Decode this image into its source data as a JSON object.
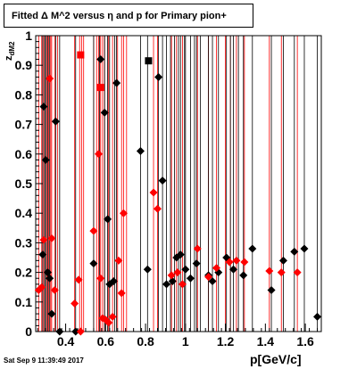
{
  "title": "Fitted Δ M^2 versus η and p for Primary pion+",
  "timestamp": "Sat Sep  9 11:39:49 2017",
  "chart_data": {
    "type": "scatter",
    "title": "Fitted Δ M^2 versus η and p for Primary pion+",
    "xlabel": "p[GeV/c]",
    "ylabel": "z_dM2",
    "xlim": [
      0.25,
      1.68
    ],
    "ylim": [
      0,
      1
    ],
    "x_ticks": [
      0.4,
      0.6,
      0.8,
      1.0,
      1.2,
      1.4,
      1.6
    ],
    "x_tick_labels": [
      "0.4",
      "0.6",
      "0.8",
      "1",
      "1.2",
      "1.4",
      "1.6"
    ],
    "y_ticks": [
      0,
      0.1,
      0.2,
      0.3,
      0.4,
      0.5,
      0.6,
      0.7,
      0.8,
      0.9,
      1
    ],
    "y_tick_labels": [
      "0",
      "0.1",
      "0.2",
      "0.3",
      "0.4",
      "0.5",
      "0.6",
      "0.7",
      "0.8",
      "0.9",
      "1"
    ],
    "colors": {
      "black": "#000000",
      "red": "#ff0000"
    },
    "series": [
      {
        "color": "#000000",
        "points": [
          {
            "x": 0.285,
            "y": 0.26
          },
          {
            "x": 0.29,
            "y": 0.76
          },
          {
            "x": 0.3,
            "y": 0.58
          },
          {
            "x": 0.31,
            "y": 0.2
          },
          {
            "x": 0.32,
            "y": 0.18
          },
          {
            "x": 0.33,
            "y": 0.06
          },
          {
            "x": 0.35,
            "y": 0.71
          },
          {
            "x": 0.37,
            "y": 0.0
          },
          {
            "x": 0.45,
            "y": 0.0
          },
          {
            "x": 0.54,
            "y": 0.23
          },
          {
            "x": 0.575,
            "y": 0.92
          },
          {
            "x": 0.595,
            "y": 0.74
          },
          {
            "x": 0.61,
            "y": 0.38
          },
          {
            "x": 0.62,
            "y": 0.16
          },
          {
            "x": 0.64,
            "y": 0.17
          },
          {
            "x": 0.655,
            "y": 0.84
          },
          {
            "x": 0.775,
            "y": 0.61
          },
          {
            "x": 0.81,
            "y": 0.21
          },
          {
            "x": 0.865,
            "y": 0.86
          },
          {
            "x": 0.885,
            "y": 0.51
          },
          {
            "x": 0.905,
            "y": 0.16
          },
          {
            "x": 0.935,
            "y": 0.17
          },
          {
            "x": 0.955,
            "y": 0.25
          },
          {
            "x": 0.975,
            "y": 0.26
          },
          {
            "x": 1.0,
            "y": 0.21
          },
          {
            "x": 1.025,
            "y": 0.18
          },
          {
            "x": 1.055,
            "y": 0.23
          },
          {
            "x": 1.115,
            "y": 0.19
          },
          {
            "x": 1.135,
            "y": 0.17
          },
          {
            "x": 1.165,
            "y": 0.2
          },
          {
            "x": 1.205,
            "y": 0.25
          },
          {
            "x": 1.24,
            "y": 0.21
          },
          {
            "x": 1.29,
            "y": 0.19
          },
          {
            "x": 1.335,
            "y": 0.28
          },
          {
            "x": 1.43,
            "y": 0.14
          },
          {
            "x": 1.49,
            "y": 0.24
          },
          {
            "x": 1.545,
            "y": 0.27
          },
          {
            "x": 1.595,
            "y": 0.28
          },
          {
            "x": 1.66,
            "y": 0.05
          }
        ],
        "square": {
          "x": 0.815,
          "y": 0.915
        }
      },
      {
        "color": "#ff0000",
        "points": [
          {
            "x": 0.265,
            "y": 0.14
          },
          {
            "x": 0.28,
            "y": 0.15
          },
          {
            "x": 0.29,
            "y": 0.31
          },
          {
            "x": 0.32,
            "y": 0.855
          },
          {
            "x": 0.33,
            "y": 0.315
          },
          {
            "x": 0.345,
            "y": 0.14
          },
          {
            "x": 0.445,
            "y": 0.095
          },
          {
            "x": 0.465,
            "y": 0.175
          },
          {
            "x": 0.475,
            "y": 0.0
          },
          {
            "x": 0.54,
            "y": 0.34
          },
          {
            "x": 0.565,
            "y": 0.6
          },
          {
            "x": 0.575,
            "y": 0.18
          },
          {
            "x": 0.585,
            "y": 0.045
          },
          {
            "x": 0.6,
            "y": 0.04
          },
          {
            "x": 0.615,
            "y": 0.03
          },
          {
            "x": 0.635,
            "y": 0.05
          },
          {
            "x": 0.665,
            "y": 0.24
          },
          {
            "x": 0.68,
            "y": 0.13
          },
          {
            "x": 0.69,
            "y": 0.4
          },
          {
            "x": 0.84,
            "y": 0.47
          },
          {
            "x": 0.86,
            "y": 0.415
          },
          {
            "x": 0.93,
            "y": 0.19
          },
          {
            "x": 0.96,
            "y": 0.2
          },
          {
            "x": 0.985,
            "y": 0.16
          },
          {
            "x": 1.06,
            "y": 0.28
          },
          {
            "x": 1.115,
            "y": 0.185
          },
          {
            "x": 1.155,
            "y": 0.215
          },
          {
            "x": 1.22,
            "y": 0.235
          },
          {
            "x": 1.255,
            "y": 0.24
          },
          {
            "x": 1.295,
            "y": 0.235
          },
          {
            "x": 1.42,
            "y": 0.205
          },
          {
            "x": 1.48,
            "y": 0.2
          },
          {
            "x": 1.56,
            "y": 0.2
          }
        ],
        "squares": [
          {
            "x": 0.475,
            "y": 0.935
          },
          {
            "x": 0.575,
            "y": 0.825
          }
        ]
      }
    ],
    "vertical_lines": {
      "red": [
        0.265,
        0.28,
        0.29,
        0.305,
        0.315,
        0.325,
        0.33,
        0.345,
        0.36,
        0.445,
        0.47,
        0.48,
        0.49,
        0.54,
        0.555,
        0.565,
        0.575,
        0.585,
        0.595,
        0.615,
        0.635,
        0.66,
        0.68,
        0.69,
        0.705,
        0.84,
        0.86,
        0.93,
        0.955,
        0.985,
        1.06,
        1.115,
        1.155,
        1.2,
        1.225,
        1.255,
        1.295,
        1.42,
        1.48,
        1.56
      ],
      "black": [
        0.285,
        0.295,
        0.3,
        0.31,
        0.32,
        0.35,
        0.37,
        0.45,
        0.54,
        0.57,
        0.595,
        0.61,
        0.62,
        0.645,
        0.655,
        0.775,
        0.81,
        0.865,
        0.885,
        0.905,
        0.925,
        0.945,
        0.965,
        0.975,
        0.995,
        1.0,
        1.025,
        1.045,
        1.055,
        1.075,
        1.115,
        1.135,
        1.165,
        1.205,
        1.225,
        1.24,
        1.265,
        1.29,
        1.335,
        1.43,
        1.49,
        1.545,
        1.595,
        1.66
      ]
    }
  }
}
